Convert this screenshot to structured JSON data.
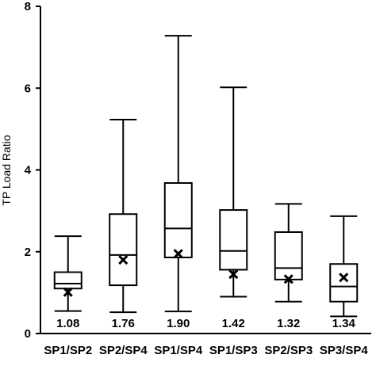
{
  "chart_data": {
    "type": "box",
    "title": "",
    "xlabel": "",
    "ylabel": "TP Load Ratio",
    "ylim": [
      0,
      8
    ],
    "yticks": [
      0,
      2,
      4,
      6,
      8
    ],
    "grid": false,
    "categories": [
      "SP1/SP2",
      "SP2/SP4",
      "SP1/SP4",
      "SP1/SP3",
      "SP2/SP3",
      "SP3/SP4"
    ],
    "boxes": [
      {
        "category": "SP1/SP2",
        "min": 0.55,
        "q1": 1.1,
        "median": 1.22,
        "q3": 1.5,
        "max": 2.38,
        "mean": 1.01,
        "label": "1.08"
      },
      {
        "category": "SP2/SP4",
        "min": 0.52,
        "q1": 1.18,
        "median": 1.92,
        "q3": 2.92,
        "max": 5.23,
        "mean": 1.8,
        "label": "1.76"
      },
      {
        "category": "SP1/SP4",
        "min": 0.54,
        "q1": 1.86,
        "median": 2.57,
        "q3": 3.68,
        "max": 7.28,
        "mean": 1.95,
        "label": "1.90"
      },
      {
        "category": "SP1/SP3",
        "min": 0.9,
        "q1": 1.56,
        "median": 2.02,
        "q3": 3.02,
        "max": 6.02,
        "mean": 1.45,
        "label": "1.42"
      },
      {
        "category": "SP2/SP3",
        "min": 0.78,
        "q1": 1.32,
        "median": 1.6,
        "q3": 2.48,
        "max": 3.17,
        "mean": 1.33,
        "label": "1.32"
      },
      {
        "category": "SP3/SP4",
        "min": 0.42,
        "q1": 0.78,
        "median": 1.15,
        "q3": 1.7,
        "max": 2.87,
        "mean": 1.37,
        "label": "1.34"
      }
    ]
  }
}
